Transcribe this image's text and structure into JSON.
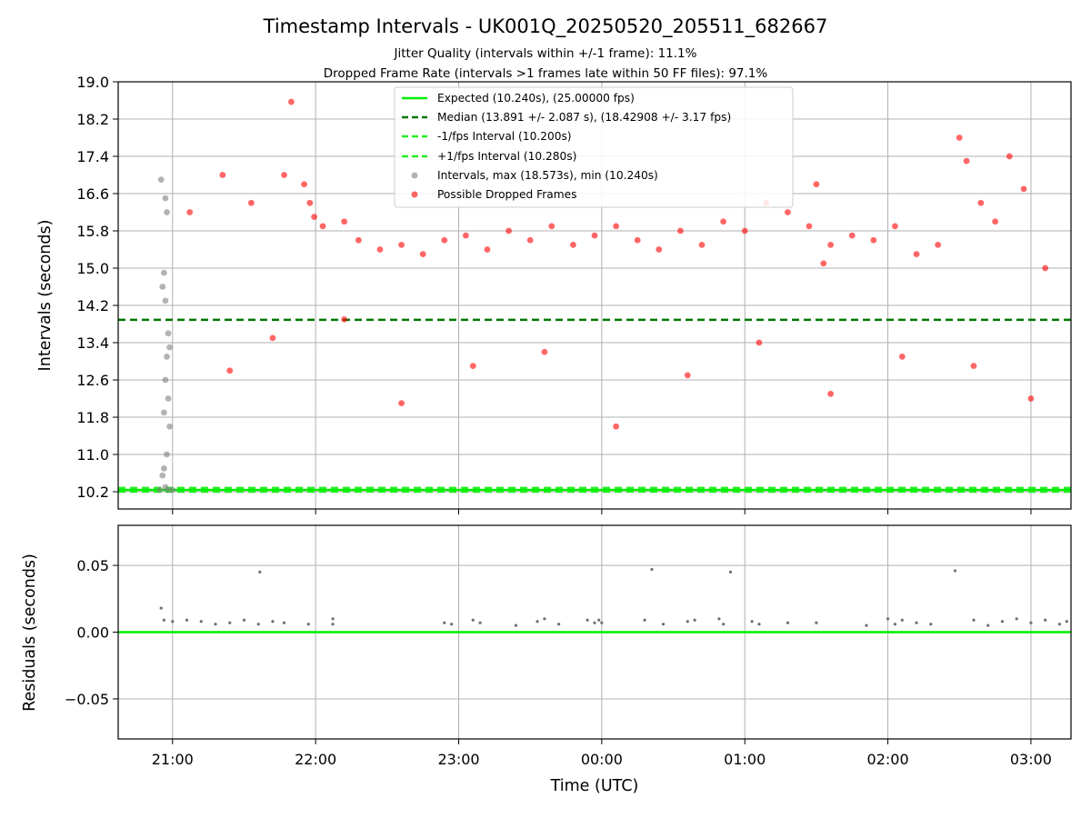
{
  "chart_data": [
    {
      "type": "scatter",
      "title": "Timestamp Intervals - UK001Q_20250520_205511_682667",
      "subtitle_lines": [
        "Jitter Quality (intervals within +/-1 frame): 11.1%",
        "Dropped Frame Rate (intervals >1 frames late within 50 FF files): 97.1%"
      ],
      "xlabel": "",
      "ylabel": "Intervals (seconds)",
      "x_units": "hours after 21:00 UTC",
      "xlim": [
        -0.38,
        6.28
      ],
      "ylim": [
        9.83,
        19.0
      ],
      "yticks": [
        10.2,
        11.0,
        11.8,
        12.6,
        13.4,
        14.2,
        15.0,
        15.8,
        16.6,
        17.4,
        18.2,
        19.0
      ],
      "ytick_labels": [
        "10.2",
        "11.0",
        "11.8",
        "12.6",
        "13.4",
        "14.2",
        "15.0",
        "15.8",
        "16.6",
        "17.4",
        "18.2",
        "19.0"
      ],
      "xticks": [
        0,
        1,
        2,
        3,
        4,
        5,
        6
      ],
      "grid": true,
      "legend_position": "top-center",
      "lines": [
        {
          "name": "Expected (10.240s), (25.00000 fps)",
          "y": 10.24,
          "color": "#00ee00",
          "style": "solid"
        },
        {
          "name": "Median (13.891 +/- 2.087 s), (18.42908 +/- 3.17 fps)",
          "y": 13.891,
          "color": "#007700",
          "style": "dashed"
        },
        {
          "name": "-1/fps Interval (10.200s)",
          "y": 10.2,
          "color": "#22ee22",
          "style": "dashed"
        },
        {
          "name": "+1/fps Interval (10.280s)",
          "y": 10.28,
          "color": "#22ee22",
          "style": "dashed"
        }
      ],
      "series": [
        {
          "name": "Intervals, max (18.573s), min (10.240s)",
          "color": "#808080",
          "points": [
            [
              -0.08,
              16.9
            ],
            [
              -0.05,
              16.5
            ],
            [
              -0.04,
              16.2
            ],
            [
              -0.06,
              14.9
            ],
            [
              -0.07,
              14.6
            ],
            [
              -0.05,
              14.3
            ],
            [
              -0.03,
              13.6
            ],
            [
              -0.02,
              13.3
            ],
            [
              -0.04,
              13.1
            ],
            [
              -0.05,
              12.6
            ],
            [
              -0.03,
              12.2
            ],
            [
              -0.06,
              11.9
            ],
            [
              -0.02,
              11.6
            ],
            [
              -0.04,
              11.0
            ],
            [
              -0.06,
              10.7
            ],
            [
              -0.07,
              10.55
            ],
            [
              -0.05,
              10.3
            ],
            [
              -0.03,
              10.24
            ],
            [
              -0.09,
              10.24
            ],
            [
              0.0,
              10.24
            ]
          ]
        },
        {
          "name": "Possible Dropped Frames",
          "color": "#ff0000",
          "points": [
            [
              0.83,
              18.57
            ],
            [
              0.12,
              16.2
            ],
            [
              0.35,
              17.0
            ],
            [
              0.55,
              16.4
            ],
            [
              0.78,
              17.0
            ],
            [
              0.92,
              16.8
            ],
            [
              0.96,
              16.4
            ],
            [
              0.99,
              16.1
            ],
            [
              1.05,
              15.9
            ],
            [
              1.2,
              16.0
            ],
            [
              1.3,
              15.6
            ],
            [
              1.45,
              15.4
            ],
            [
              1.6,
              15.5
            ],
            [
              1.75,
              15.3
            ],
            [
              1.9,
              15.6
            ],
            [
              2.05,
              15.7
            ],
            [
              2.2,
              15.4
            ],
            [
              2.35,
              15.8
            ],
            [
              2.5,
              15.6
            ],
            [
              2.65,
              15.9
            ],
            [
              2.8,
              15.5
            ],
            [
              2.95,
              15.7
            ],
            [
              3.1,
              15.9
            ],
            [
              3.25,
              15.6
            ],
            [
              3.4,
              15.4
            ],
            [
              3.55,
              15.8
            ],
            [
              3.7,
              15.5
            ],
            [
              3.85,
              16.0
            ],
            [
              4.0,
              15.8
            ],
            [
              4.15,
              16.4
            ],
            [
              4.3,
              16.2
            ],
            [
              4.45,
              15.9
            ],
            [
              4.6,
              15.5
            ],
            [
              4.75,
              15.7
            ],
            [
              4.9,
              15.6
            ],
            [
              5.05,
              15.9
            ],
            [
              5.2,
              15.3
            ],
            [
              5.35,
              15.5
            ],
            [
              5.5,
              17.8
            ],
            [
              5.55,
              17.3
            ],
            [
              5.65,
              16.4
            ],
            [
              5.75,
              16.0
            ],
            [
              5.85,
              17.4
            ],
            [
              5.95,
              16.7
            ],
            [
              6.1,
              15.0
            ],
            [
              4.5,
              16.8
            ],
            [
              4.55,
              15.1
            ],
            [
              0.4,
              12.8
            ],
            [
              0.7,
              13.5
            ],
            [
              1.2,
              13.9
            ],
            [
              1.6,
              12.1
            ],
            [
              2.1,
              12.9
            ],
            [
              2.6,
              13.2
            ],
            [
              3.1,
              11.6
            ],
            [
              3.6,
              12.7
            ],
            [
              4.1,
              13.4
            ],
            [
              4.6,
              12.3
            ],
            [
              5.1,
              13.1
            ],
            [
              5.6,
              12.9
            ],
            [
              6.0,
              12.2
            ]
          ]
        }
      ]
    },
    {
      "type": "scatter",
      "title": "",
      "xlabel": "Time (UTC)",
      "ylabel": "Residuals (seconds)",
      "x_units": "hours after 21:00 UTC",
      "xlim": [
        -0.38,
        6.28
      ],
      "ylim": [
        -0.08,
        0.08
      ],
      "yticks": [
        -0.05,
        0.0,
        0.05
      ],
      "ytick_labels": [
        "−0.05",
        "0.00",
        "0.05"
      ],
      "xticks": [
        0,
        1,
        2,
        3,
        4,
        5,
        6
      ],
      "xtick_labels": [
        "21:00",
        "22:00",
        "23:00",
        "00:00",
        "01:00",
        "02:00",
        "03:00"
      ],
      "grid": true,
      "lines": [
        {
          "y": 0.0,
          "color": "#00ee00",
          "style": "solid"
        }
      ],
      "series": [
        {
          "color": "#707070",
          "points": [
            [
              -0.08,
              0.018
            ],
            [
              -0.06,
              0.009
            ],
            [
              0.0,
              0.008
            ],
            [
              0.1,
              0.009
            ],
            [
              0.2,
              0.008
            ],
            [
              0.3,
              0.006
            ],
            [
              0.4,
              0.007
            ],
            [
              0.5,
              0.009
            ],
            [
              0.6,
              0.006
            ],
            [
              0.7,
              0.008
            ],
            [
              0.78,
              0.007
            ],
            [
              0.95,
              0.006
            ],
            [
              1.12,
              0.01
            ],
            [
              1.12,
              0.006
            ],
            [
              0.61,
              0.045
            ],
            [
              1.9,
              0.007
            ],
            [
              1.95,
              0.006
            ],
            [
              2.1,
              0.009
            ],
            [
              2.15,
              0.007
            ],
            [
              2.4,
              0.005
            ],
            [
              2.55,
              0.008
            ],
            [
              2.6,
              0.01
            ],
            [
              2.7,
              0.006
            ],
            [
              2.9,
              0.009
            ],
            [
              2.95,
              0.007
            ],
            [
              2.98,
              0.009
            ],
            [
              3.0,
              0.007
            ],
            [
              3.3,
              0.009
            ],
            [
              3.35,
              0.047
            ],
            [
              3.43,
              0.006
            ],
            [
              3.6,
              0.008
            ],
            [
              3.65,
              0.009
            ],
            [
              3.82,
              0.01
            ],
            [
              3.85,
              0.006
            ],
            [
              3.9,
              0.045
            ],
            [
              4.05,
              0.008
            ],
            [
              4.1,
              0.006
            ],
            [
              4.3,
              0.007
            ],
            [
              4.5,
              0.007
            ],
            [
              4.85,
              0.005
            ],
            [
              5.0,
              0.01
            ],
            [
              5.05,
              0.006
            ],
            [
              5.1,
              0.009
            ],
            [
              5.2,
              0.007
            ],
            [
              5.3,
              0.006
            ],
            [
              5.47,
              0.046
            ],
            [
              5.6,
              0.009
            ],
            [
              5.7,
              0.005
            ],
            [
              5.8,
              0.008
            ],
            [
              5.9,
              0.01
            ],
            [
              6.0,
              0.007
            ],
            [
              6.1,
              0.009
            ],
            [
              6.2,
              0.006
            ],
            [
              6.25,
              0.008
            ]
          ]
        }
      ]
    }
  ]
}
